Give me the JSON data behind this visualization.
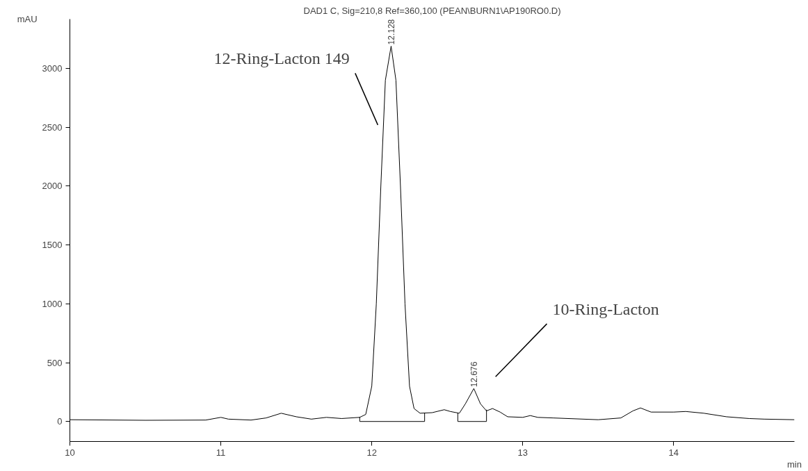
{
  "chart_data": {
    "type": "line",
    "title": "DAD1 C, Sig=210,8 Ref=360,100 (PEAN\\BURN1\\AP190RO0.D)",
    "xlabel": "min",
    "ylabel": "mAU",
    "xlim": [
      10,
      14.8
    ],
    "ylim": [
      -170,
      3420
    ],
    "xticks": [
      10,
      11,
      12,
      13,
      14
    ],
    "yticks": [
      0,
      500,
      1000,
      1500,
      2000,
      2500,
      3000
    ],
    "grid": false,
    "marker": "none",
    "line_style": "solid",
    "series": [
      {
        "color": "#000000",
        "x": [
          10.0,
          10.5,
          10.9,
          11.0,
          11.05,
          11.2,
          11.3,
          11.4,
          11.5,
          11.6,
          11.7,
          11.8,
          11.92,
          11.96,
          12.0,
          12.03,
          12.06,
          12.09,
          12.128,
          12.16,
          12.19,
          12.22,
          12.25,
          12.28,
          12.32,
          12.4,
          12.48,
          12.52,
          12.58,
          12.62,
          12.676,
          12.72,
          12.76,
          12.8,
          12.85,
          12.9,
          13.0,
          13.05,
          13.1,
          13.2,
          13.5,
          13.65,
          13.73,
          13.78,
          13.85,
          14.0,
          14.08,
          14.2,
          14.35,
          14.5,
          14.6,
          14.8
        ],
        "values": [
          15,
          10,
          12,
          35,
          20,
          12,
          30,
          70,
          40,
          20,
          35,
          25,
          35,
          60,
          300,
          1000,
          2000,
          2900,
          3190,
          2900,
          2000,
          1000,
          300,
          110,
          70,
          75,
          100,
          85,
          70,
          150,
          280,
          150,
          90,
          110,
          80,
          40,
          35,
          50,
          35,
          30,
          15,
          30,
          90,
          115,
          80,
          80,
          85,
          70,
          40,
          25,
          20,
          15
        ]
      },
      {
        "color": "#000000",
        "x": [
          11.92,
          11.92,
          12.35,
          12.35
        ],
        "values": [
          40,
          0,
          0,
          75
        ]
      },
      {
        "color": "#000000",
        "x": [
          12.57,
          12.57,
          12.76,
          12.76
        ],
        "values": [
          75,
          0,
          0,
          100
        ]
      }
    ],
    "annotations": [
      {
        "text": "12.128",
        "x": 12.128,
        "y": 3190
      },
      {
        "text": "12.676",
        "x": 12.676,
        "y": 280
      },
      "12-Ring-Lacton 149",
      "10-Ring-Lacton"
    ]
  }
}
